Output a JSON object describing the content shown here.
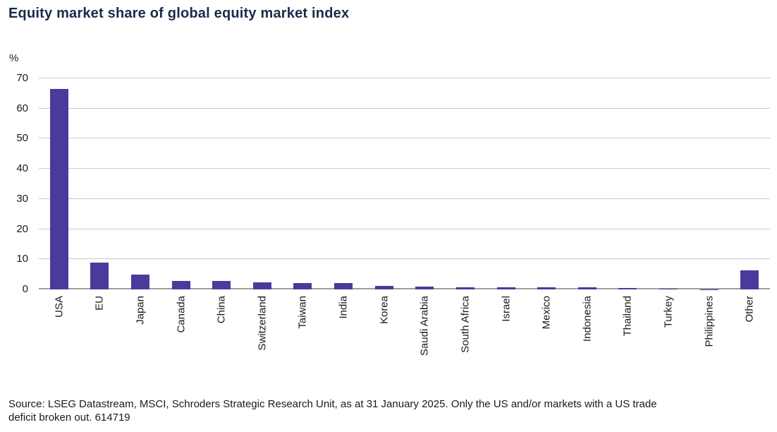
{
  "title": "Equity market share of global equity market index",
  "source": {
    "line1": "Source: LSEG Datastream, MSCI, Schroders Strategic Research Unit, as at 31 January 2025. Only the US and/or markets with a US trade",
    "line2": "deficit broken out. 614719"
  },
  "colors": {
    "title_text": "#1b2b4a",
    "bar": "#4a3a9c",
    "gridline": "#c9c9c9",
    "zero_line": "#9e9e9e",
    "axis_text": "#1a1a1a"
  },
  "chart_data": {
    "type": "bar",
    "title": "Equity market share of global equity market index",
    "unit_label": "%",
    "xlabel": "",
    "ylabel": "%",
    "ylim": [
      0,
      70
    ],
    "yticks": [
      0,
      10,
      20,
      30,
      40,
      50,
      60,
      70
    ],
    "grid": true,
    "bar_color": "#4a3a9c",
    "categories": [
      "USA",
      "EU",
      "Japan",
      "Canada",
      "China",
      "Switzerland",
      "Taiwan",
      "India",
      "Korea",
      "Saudi Arabia",
      "South Africa",
      "Israel",
      "Mexico",
      "Indonesia",
      "Thailand",
      "Turkey",
      "Philippines",
      "Other"
    ],
    "values": [
      66.5,
      8.9,
      4.9,
      2.7,
      2.9,
      2.3,
      2.2,
      2.0,
      1.2,
      1.0,
      0.8,
      0.6,
      0.6,
      0.6,
      0.4,
      0.2,
      0.05,
      6.3
    ]
  }
}
